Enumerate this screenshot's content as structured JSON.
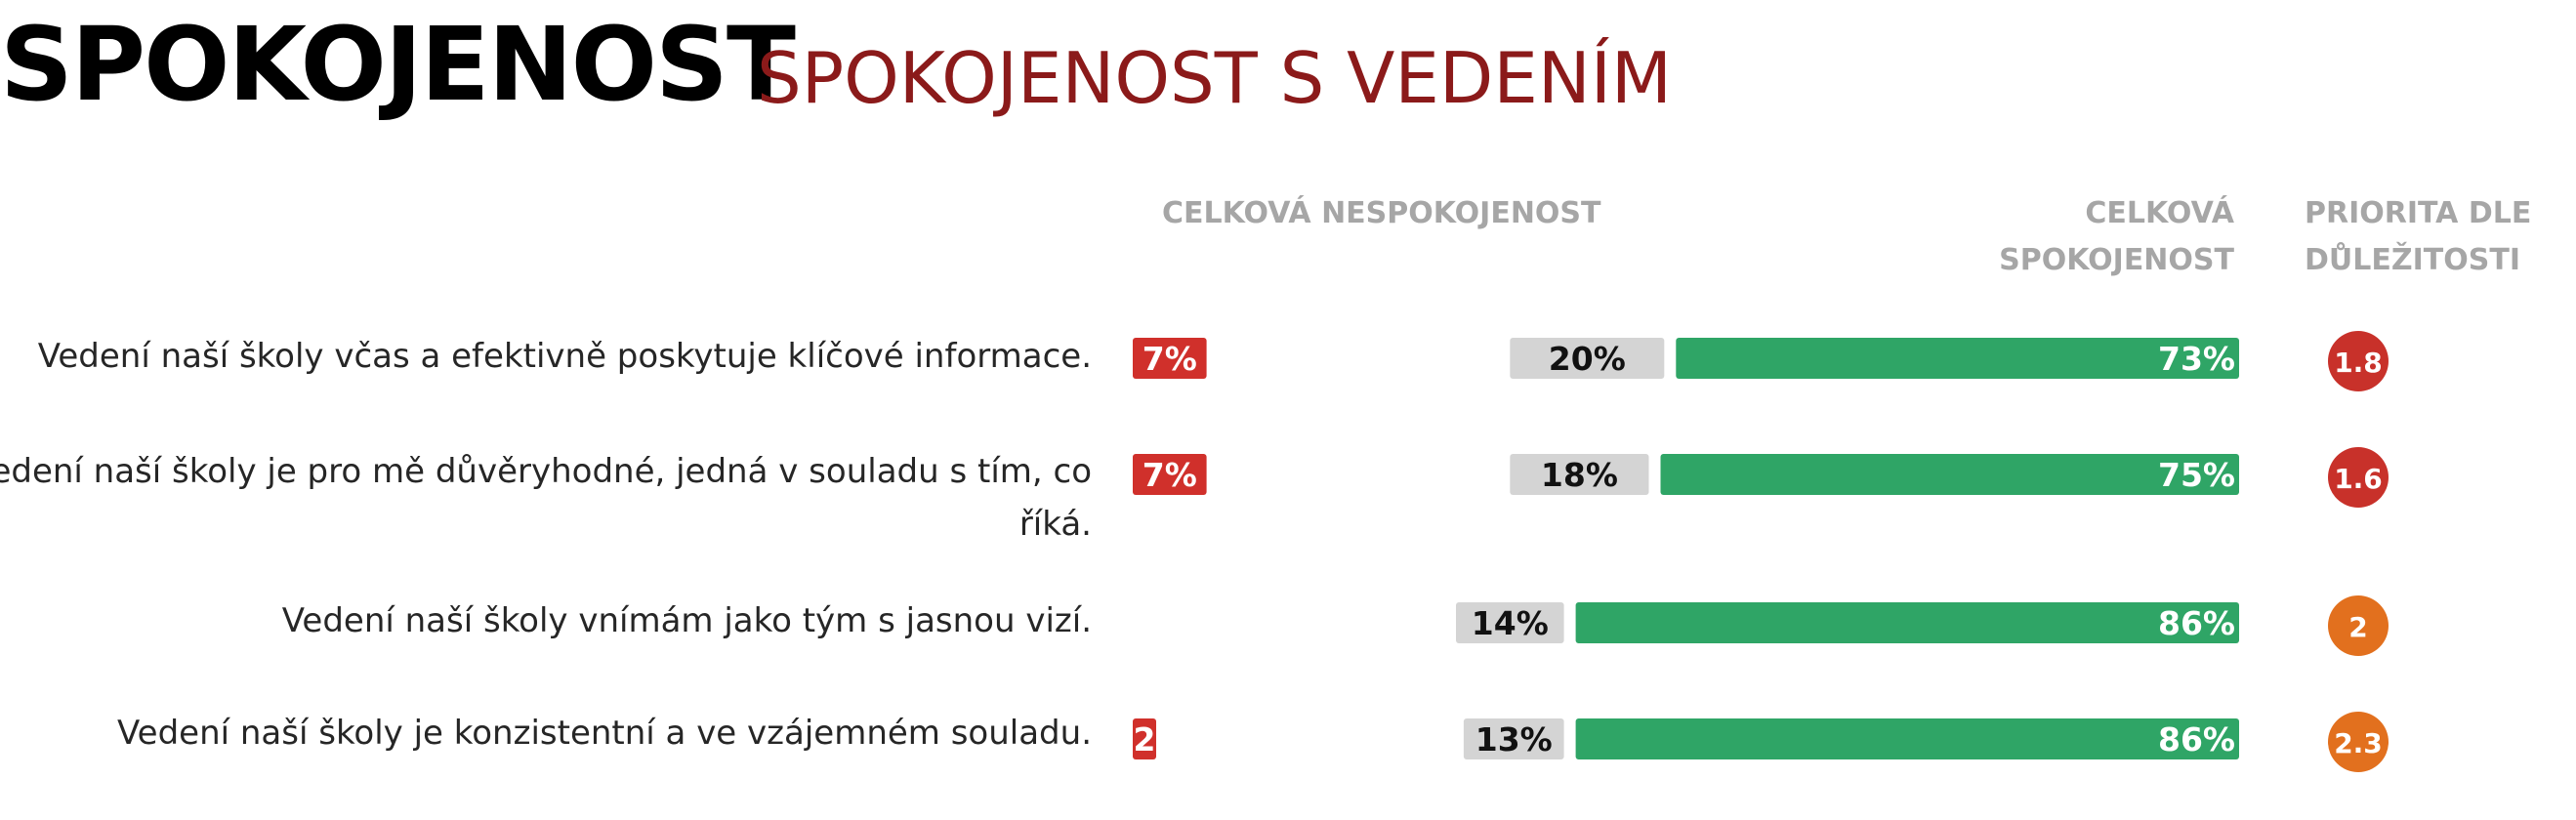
{
  "title": "SPOKOJENOST",
  "subtitle": "SPOKOJENOST S VEDENÍM",
  "headers": {
    "dissatisfaction": "CELKOVÁ NESPOKOJENOST",
    "satisfaction_line1": "CELKOVÁ",
    "satisfaction_line2": "SPOKOJENOST",
    "priority_line1": "PRIORITA DLE",
    "priority_line2": "DŮLEŽITOSTI"
  },
  "colors": {
    "dissatisfied": "#d0302b",
    "neutral": "#d4d4d4",
    "satisfied": "#2fa566",
    "priority_high": "#c8312a",
    "priority_mid": "#e2701e",
    "title_sub": "#8b1a1a",
    "header_gray": "#a6a6a6"
  },
  "chart_data": {
    "type": "bar",
    "orientation": "horizontal-stacked-diverging",
    "categories": [
      "Vedení naší školy včas a efektivně poskytuje klíčové informace.",
      "Vedení naší školy je pro mě důvěryhodné, jedná v souladu s tím, co říká.",
      "Vedení naší školy vnímám jako tým s jasnou vizí.",
      "Vedení naší školy je konzistentní a ve vzájemném souladu."
    ],
    "series": [
      {
        "values": [
          7,
          7,
          0,
          2
        ],
        "labels": [
          "7%",
          "7%",
          "",
          "2"
        ]
      },
      {
        "values": [
          20,
          18,
          14,
          13
        ],
        "labels": [
          "20%",
          "18%",
          "14%",
          "13%"
        ]
      },
      {
        "values": [
          73,
          75,
          86,
          86
        ],
        "labels": [
          "73%",
          "75%",
          "86%",
          "86%"
        ]
      }
    ],
    "priority": {
      "values": [
        1.8,
        1.6,
        2,
        2.3
      ],
      "labels": [
        "1.8",
        "1.6",
        "2",
        "2.3"
      ]
    }
  }
}
